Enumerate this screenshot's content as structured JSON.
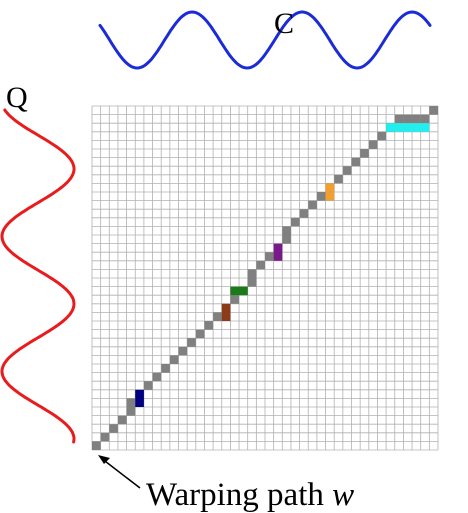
{
  "labels": {
    "top_series": "C",
    "left_series": "Q",
    "path_caption_prefix": "Warping path ",
    "path_caption_var": "w"
  },
  "colors": {
    "top_series": "#1c2bd8",
    "left_series": "#e81c1c",
    "grid_line": "#b0b0b0",
    "path_cell": "#808080",
    "arrow": "#000000"
  },
  "grid": {
    "cols": 40,
    "rows": 40
  },
  "warping_path": {
    "path_cells": [
      [
        0,
        0
      ],
      [
        1,
        1
      ],
      [
        2,
        2
      ],
      [
        3,
        3
      ],
      [
        4,
        4
      ],
      [
        5,
        4
      ],
      [
        6,
        5
      ],
      [
        7,
        6
      ],
      [
        8,
        7
      ],
      [
        9,
        8
      ],
      [
        10,
        9
      ],
      [
        11,
        10
      ],
      [
        12,
        11
      ],
      [
        13,
        12
      ],
      [
        14,
        13
      ],
      [
        15,
        14
      ],
      [
        16,
        15
      ],
      [
        17,
        16
      ],
      [
        18,
        17
      ],
      [
        19,
        18
      ],
      [
        20,
        18
      ],
      [
        21,
        19
      ],
      [
        22,
        20
      ],
      [
        23,
        21
      ],
      [
        24,
        22
      ],
      [
        25,
        22
      ],
      [
        26,
        23
      ],
      [
        27,
        24
      ],
      [
        28,
        25
      ],
      [
        29,
        26
      ],
      [
        30,
        27
      ],
      [
        31,
        28
      ],
      [
        32,
        29
      ],
      [
        33,
        30
      ],
      [
        34,
        31
      ],
      [
        35,
        32
      ],
      [
        36,
        33
      ],
      [
        37,
        34
      ],
      [
        38,
        35
      ],
      [
        38,
        36
      ],
      [
        38,
        37
      ],
      [
        38,
        38
      ],
      [
        39,
        39
      ]
    ],
    "highlights": [
      {
        "name": "highlight-navy",
        "color": "#000080",
        "row": 5,
        "col": 5,
        "w": 1,
        "h": 2
      },
      {
        "name": "highlight-brown",
        "color": "#8b3a1a",
        "row": 15,
        "col": 15,
        "w": 1,
        "h": 2
      },
      {
        "name": "highlight-green",
        "color": "#1a7a1a",
        "row": 18,
        "col": 16,
        "w": 2,
        "h": 1
      },
      {
        "name": "highlight-purple",
        "color": "#7a1a8a",
        "row": 22,
        "col": 21,
        "w": 1,
        "h": 2
      },
      {
        "name": "highlight-orange",
        "color": "#f0a030",
        "row": 29,
        "col": 27,
        "w": 1,
        "h": 2
      },
      {
        "name": "highlight-cyan",
        "color": "#22eeee",
        "row": 37,
        "col": 34,
        "w": 5,
        "h": 1
      }
    ]
  }
}
